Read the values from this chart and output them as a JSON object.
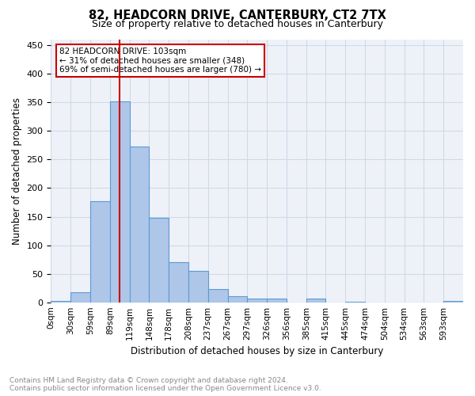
{
  "title": "82, HEADCORN DRIVE, CANTERBURY, CT2 7TX",
  "subtitle": "Size of property relative to detached houses in Canterbury",
  "xlabel": "Distribution of detached houses by size in Canterbury",
  "ylabel": "Number of detached properties",
  "footnote": "Contains HM Land Registry data © Crown copyright and database right 2024.\nContains public sector information licensed under the Open Government Licence v3.0.",
  "bar_labels": [
    "0sqm",
    "30sqm",
    "59sqm",
    "89sqm",
    "119sqm",
    "148sqm",
    "178sqm",
    "208sqm",
    "237sqm",
    "267sqm",
    "297sqm",
    "326sqm",
    "356sqm",
    "385sqm",
    "415sqm",
    "445sqm",
    "474sqm",
    "504sqm",
    "534sqm",
    "563sqm",
    "593sqm"
  ],
  "bar_values": [
    2,
    18,
    177,
    352,
    273,
    148,
    70,
    55,
    23,
    10,
    6,
    6,
    0,
    7,
    0,
    1,
    0,
    0,
    0,
    0,
    2
  ],
  "bar_color": "#aec6e8",
  "bar_edge_color": "#5b9bd5",
  "vline_x": 103,
  "bin_width": 29.5,
  "ylim": [
    0,
    460
  ],
  "yticks": [
    0,
    50,
    100,
    150,
    200,
    250,
    300,
    350,
    400,
    450
  ],
  "annotation_text": "82 HEADCORN DRIVE: 103sqm\n← 31% of detached houses are smaller (348)\n69% of semi-detached houses are larger (780) →",
  "annotation_box_color": "#ffffff",
  "annotation_box_edge_color": "#cc0000",
  "vline_color": "#cc0000",
  "grid_color": "#d0d8e8",
  "background_color": "#eef2f8"
}
